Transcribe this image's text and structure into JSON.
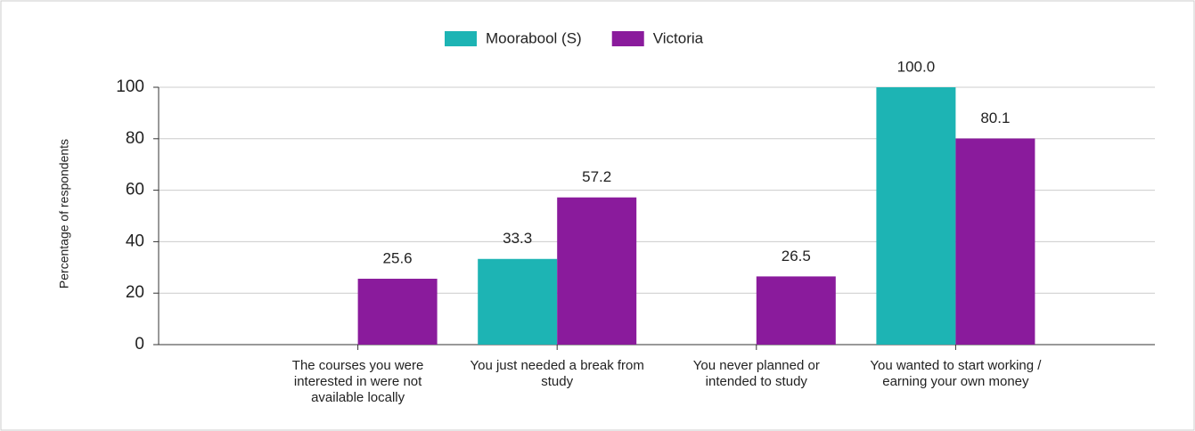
{
  "chart_data": {
    "type": "bar",
    "y_label": "Percentage of respondents",
    "categories": [
      "The courses you were interested in were not available locally",
      "You just needed a break from study",
      "You never planned or intended to study",
      "You wanted to start working / earning your own money"
    ],
    "series": [
      {
        "name": "Moorabool (S)",
        "color": "#1db4b4",
        "values": [
          null,
          33.3,
          null,
          100
        ],
        "value_labels": [
          null,
          "33.3",
          null,
          "100.0"
        ]
      },
      {
        "name": "Victoria",
        "color": "#8a1b9c",
        "values": [
          25.6,
          57.2,
          26.5,
          80.1
        ]
      }
    ],
    "ylim": [
      0,
      100
    ],
    "yticks": [
      0,
      20,
      40,
      60,
      80,
      100
    ],
    "grid": true,
    "legend": "top"
  }
}
